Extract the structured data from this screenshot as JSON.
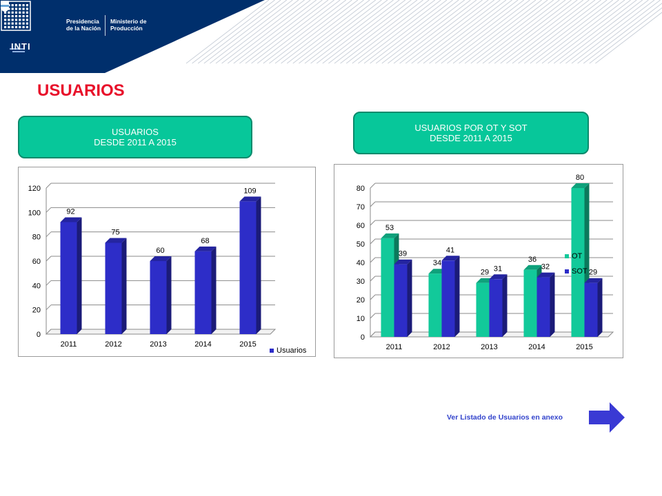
{
  "header": {
    "inti_label": "INTI",
    "presidencia": [
      "Presidencia",
      "de la Nación"
    ],
    "ministerio": [
      "Ministerio de",
      "Producción"
    ]
  },
  "page_title": "USUARIOS",
  "caption_left": [
    "USUARIOS",
    "DESDE 2011 A 2015"
  ],
  "caption_right": [
    "USUARIOS POR OT Y SOT",
    "DESDE 2011 A 2015"
  ],
  "annex_link": "Ver Listado de Usuarios en anexo",
  "colors": {
    "header_bg": "#002f6c",
    "title_red": "#e8102a",
    "caption_green": "#07c79a",
    "bar_blue": "#2d2dc8",
    "bar_green": "#12c99a",
    "arrow_blue": "#3a3ad4"
  },
  "chart_data": [
    {
      "type": "bar",
      "categories": [
        "2011",
        "2012",
        "2013",
        "2014",
        "2015"
      ],
      "series": [
        {
          "name": "Usuarios",
          "values": [
            92,
            75,
            60,
            68,
            109
          ],
          "color": "#2d2dc8"
        }
      ],
      "ylim": [
        0,
        120
      ],
      "yticks": [
        0,
        20,
        40,
        60,
        80,
        100,
        120
      ],
      "grid": true,
      "legend": "bottom-right"
    },
    {
      "type": "bar",
      "categories": [
        "2011",
        "2012",
        "2013",
        "2014",
        "2015"
      ],
      "series": [
        {
          "name": "OT",
          "values": [
            53,
            34,
            29,
            36,
            80
          ],
          "color": "#12c99a"
        },
        {
          "name": "SOT",
          "values": [
            39,
            41,
            31,
            32,
            29
          ],
          "color": "#2d2dc8"
        }
      ],
      "ylim": [
        0,
        80
      ],
      "yticks": [
        0,
        10,
        20,
        30,
        40,
        50,
        60,
        70,
        80
      ],
      "grid": true,
      "legend": "right"
    }
  ]
}
